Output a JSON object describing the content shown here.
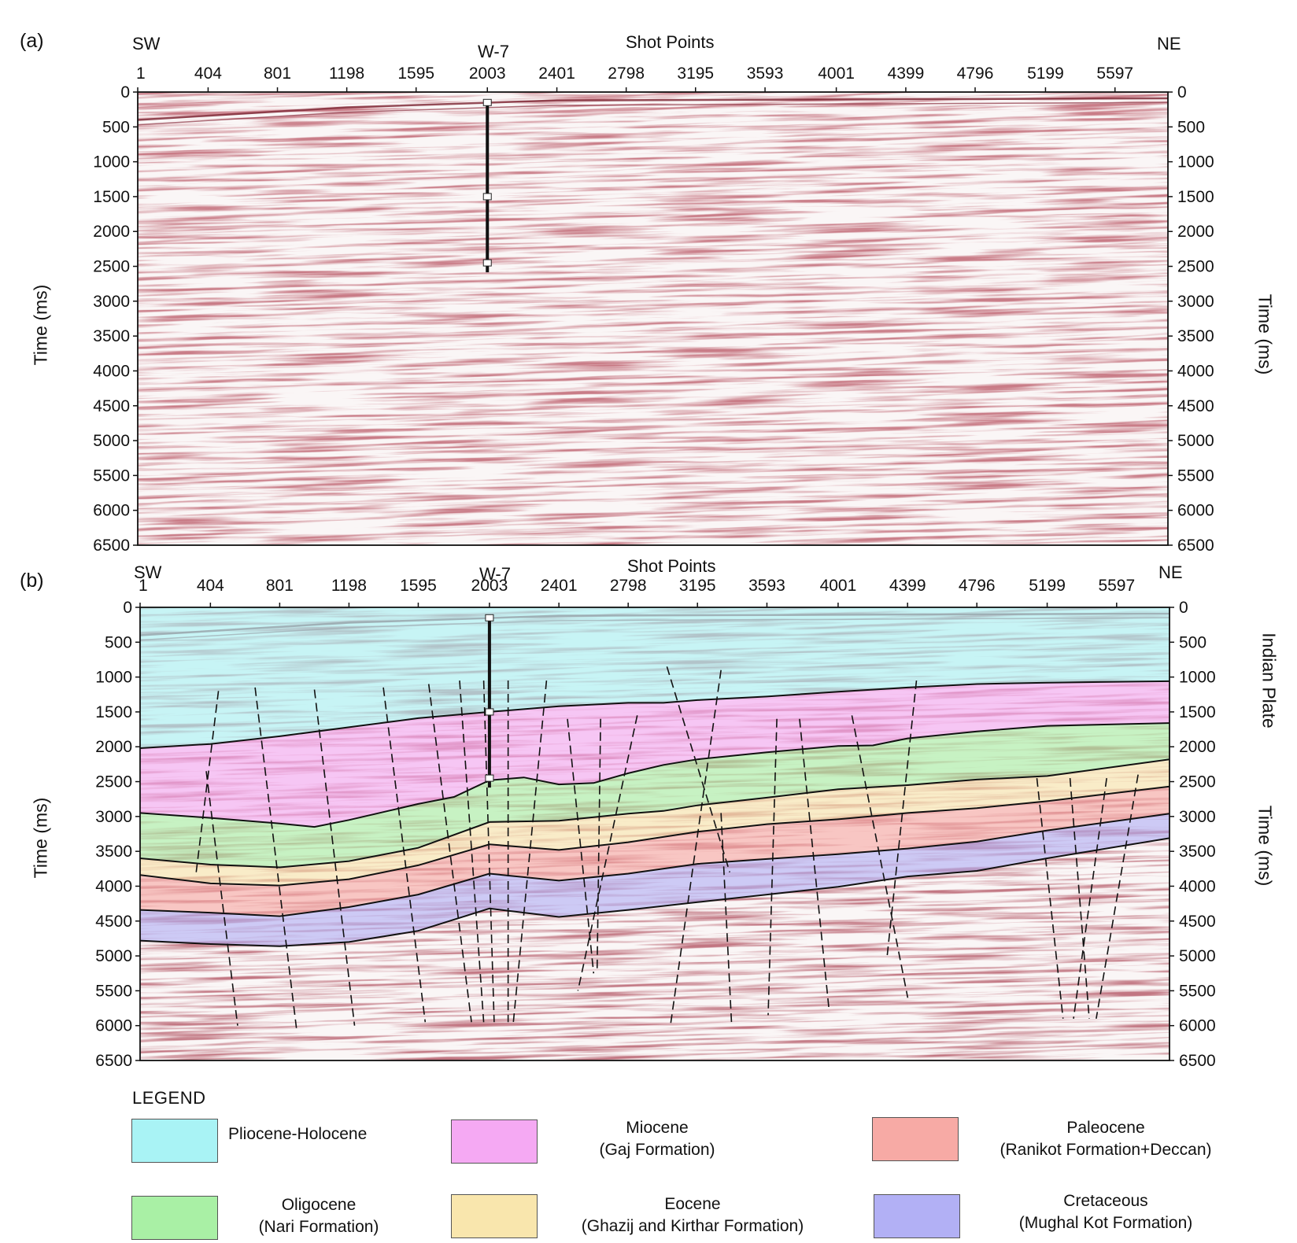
{
  "panels": [
    {
      "id": "a",
      "label": "(a)",
      "left_dir": "SW",
      "right_dir": "NE",
      "top_axis_title": "Shot Points",
      "well": "W-7",
      "left_axis_title": "Time (ms)",
      "right_axis_title": "Time (ms)",
      "right_extra_title": ""
    },
    {
      "id": "b",
      "label": "(b)",
      "left_dir": "SW",
      "right_dir": "NE",
      "top_axis_title": "Shot Points",
      "well": "W-7",
      "left_axis_title": "Time (ms)",
      "right_axis_title": "Time (ms)",
      "right_extra_title": "Indian Plate"
    }
  ],
  "shot_points": [
    "1",
    "404",
    "801",
    "1198",
    "1595",
    "2003",
    "2401",
    "2798",
    "3195",
    "3593",
    "4001",
    "4399",
    "4796",
    "5199",
    "5597"
  ],
  "time_ticks": [
    0,
    500,
    1000,
    1500,
    2000,
    2500,
    3000,
    3500,
    4000,
    4500,
    5000,
    5500,
    6000,
    6500
  ],
  "time_range_ms": [
    0,
    6500
  ],
  "shot_range": [
    1,
    5900
  ],
  "well_shot_point": 2003,
  "well_markers_ms": [
    150,
    1500,
    2450
  ],
  "legend": {
    "title": "LEGEND",
    "items": [
      {
        "line1": "Pliocene-Holocene",
        "line2": "",
        "color": "#a9f3f5"
      },
      {
        "line1": "Miocene",
        "line2": "(Gaj Formation)",
        "color": "#f5a9f3"
      },
      {
        "line1": "Paleocene",
        "line2": "(Ranikot Formation+Deccan)",
        "color": "#f7aaa5"
      },
      {
        "line1": "Oligocene",
        "line2": "(Nari Formation)",
        "color": "#a9f0a5"
      },
      {
        "line1": "Eocene",
        "line2": "(Ghazij and Kirthar Formation)",
        "color": "#f9e6ad"
      },
      {
        "line1": "Cretaceous",
        "line2": "(Mughal Kot Formation)",
        "color": "#b2b0f5"
      }
    ]
  },
  "horizons": [
    {
      "name": "Pliocene-Holocene base",
      "shot": [
        1,
        404,
        801,
        1198,
        1595,
        2003,
        2401,
        2798,
        3000,
        3195,
        3593,
        4001,
        4399,
        4796,
        5199,
        5900
      ],
      "time": [
        2020,
        1960,
        1850,
        1720,
        1590,
        1500,
        1420,
        1370,
        1370,
        1330,
        1280,
        1210,
        1150,
        1100,
        1080,
        1060
      ]
    },
    {
      "name": "Miocene base",
      "shot": [
        1,
        404,
        801,
        1000,
        1198,
        1595,
        1800,
        2003,
        2200,
        2401,
        2600,
        2798,
        3000,
        3195,
        3593,
        4001,
        4200,
        4399,
        4796,
        5199,
        5900
      ],
      "time": [
        2950,
        3020,
        3100,
        3150,
        3050,
        2820,
        2720,
        2480,
        2440,
        2540,
        2520,
        2380,
        2260,
        2180,
        2080,
        1990,
        1980,
        1880,
        1780,
        1700,
        1660
      ]
    },
    {
      "name": "Oligocene base",
      "shot": [
        1,
        404,
        801,
        1198,
        1595,
        2003,
        2401,
        2798,
        3000,
        3195,
        3593,
        4001,
        4399,
        4796,
        5199,
        5900
      ],
      "time": [
        3600,
        3690,
        3730,
        3640,
        3450,
        3080,
        3060,
        2960,
        2920,
        2840,
        2730,
        2610,
        2550,
        2470,
        2420,
        2180
      ]
    },
    {
      "name": "Eocene base",
      "shot": [
        1,
        404,
        801,
        1198,
        1595,
        2003,
        2401,
        2798,
        3195,
        3593,
        4001,
        4399,
        4796,
        5199,
        5900
      ],
      "time": [
        3840,
        3960,
        3990,
        3900,
        3700,
        3400,
        3480,
        3370,
        3220,
        3110,
        3040,
        2950,
        2880,
        2780,
        2570
      ]
    },
    {
      "name": "Paleocene base",
      "shot": [
        1,
        404,
        801,
        1198,
        1595,
        2003,
        2401,
        2798,
        3195,
        3593,
        4001,
        4399,
        4796,
        5199,
        5900
      ],
      "time": [
        4340,
        4380,
        4430,
        4300,
        4120,
        3820,
        3920,
        3820,
        3680,
        3610,
        3540,
        3460,
        3360,
        3200,
        2960
      ]
    },
    {
      "name": "Cretaceous base",
      "shot": [
        1,
        404,
        801,
        1198,
        1595,
        2003,
        2401,
        2798,
        3195,
        3593,
        4001,
        4399,
        4796,
        5199,
        5900
      ],
      "time": [
        4780,
        4830,
        4860,
        4800,
        4640,
        4320,
        4440,
        4340,
        4230,
        4120,
        4010,
        3860,
        3780,
        3600,
        3310
      ]
    }
  ],
  "faults": [
    {
      "shot": [
        450,
        320
      ],
      "time": [
        1200,
        3850
      ]
    },
    {
      "shot": [
        380,
        560
      ],
      "time": [
        2350,
        6000
      ]
    },
    {
      "shot": [
        660,
        900
      ],
      "time": [
        1150,
        6100
      ]
    },
    {
      "shot": [
        1000,
        1230
      ],
      "time": [
        1180,
        6000
      ]
    },
    {
      "shot": [
        1395,
        1635
      ],
      "time": [
        1150,
        5950
      ]
    },
    {
      "shot": [
        1655,
        1900
      ],
      "time": [
        1100,
        5950
      ]
    },
    {
      "shot": [
        1832,
        1970
      ],
      "time": [
        1050,
        5950
      ]
    },
    {
      "shot": [
        1970,
        2030
      ],
      "time": [
        1050,
        5950
      ]
    },
    {
      "shot": [
        2110,
        2110
      ],
      "time": [
        1050,
        5950
      ]
    },
    {
      "shot": [
        2330,
        2140
      ],
      "time": [
        1050,
        5950
      ]
    },
    {
      "shot": [
        2450,
        2600
      ],
      "time": [
        1600,
        5250
      ]
    },
    {
      "shot": [
        2640,
        2620
      ],
      "time": [
        1600,
        5200
      ]
    },
    {
      "shot": [
        2850,
        2510
      ],
      "time": [
        1550,
        5500
      ]
    },
    {
      "shot": [
        3020,
        3380
      ],
      "time": [
        850,
        3800
      ]
    },
    {
      "shot": [
        3330,
        3040
      ],
      "time": [
        900,
        6000
      ]
    },
    {
      "shot": [
        3330,
        3390
      ],
      "time": [
        2950,
        5950
      ]
    },
    {
      "shot": [
        3650,
        3600
      ],
      "time": [
        1600,
        5850
      ]
    },
    {
      "shot": [
        3780,
        3950
      ],
      "time": [
        1600,
        5800
      ]
    },
    {
      "shot": [
        4080,
        4400
      ],
      "time": [
        1550,
        5600
      ]
    },
    {
      "shot": [
        4450,
        4280
      ],
      "time": [
        1050,
        5050
      ]
    },
    {
      "shot": [
        5140,
        5290
      ],
      "time": [
        2450,
        5900
      ]
    },
    {
      "shot": [
        5330,
        5440
      ],
      "time": [
        2450,
        5900
      ]
    },
    {
      "shot": [
        5540,
        5350
      ],
      "time": [
        2450,
        5900
      ]
    },
    {
      "shot": [
        5720,
        5480
      ],
      "time": [
        2400,
        5900
      ]
    }
  ]
}
